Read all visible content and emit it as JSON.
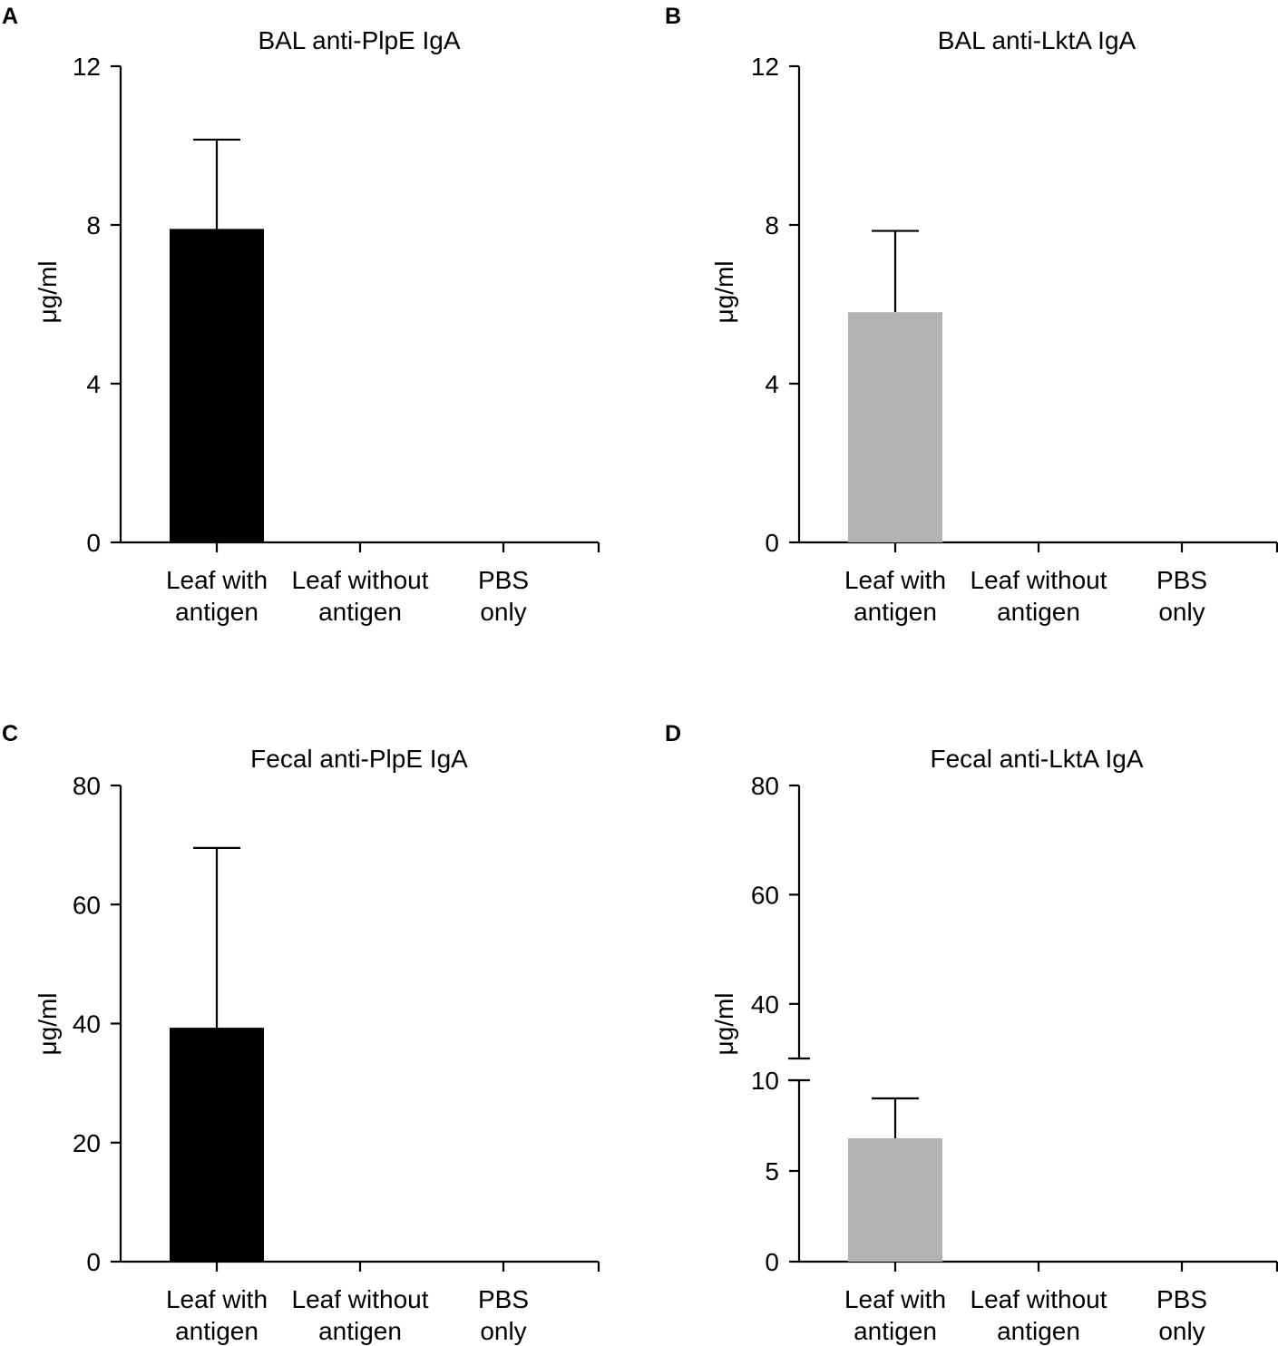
{
  "chart_data": [
    {
      "panel": "A",
      "type": "bar",
      "title": "BAL anti-PlpE IgA",
      "ylabel": "μg/ml",
      "categories": [
        [
          "Leaf with",
          "antigen"
        ],
        [
          "Leaf without",
          "antigen"
        ],
        [
          "PBS",
          "only"
        ]
      ],
      "values": [
        7.9,
        0,
        0
      ],
      "error": [
        2.25,
        0,
        0
      ],
      "ylim": [
        0,
        12
      ],
      "yticks": [
        0,
        4,
        8,
        12
      ],
      "bar_color": "#000000"
    },
    {
      "panel": "B",
      "type": "bar",
      "title": "BAL anti-LktA IgA",
      "ylabel": "μg/ml",
      "categories": [
        [
          "Leaf with",
          "antigen"
        ],
        [
          "Leaf without",
          "antigen"
        ],
        [
          "PBS",
          "only"
        ]
      ],
      "values": [
        5.8,
        0,
        0
      ],
      "error": [
        2.05,
        0,
        0
      ],
      "ylim": [
        0,
        12
      ],
      "yticks": [
        0,
        4,
        8,
        12
      ],
      "bar_color": "#b3b3b3"
    },
    {
      "panel": "C",
      "type": "bar",
      "title": "Fecal anti-PlpE IgA",
      "ylabel": "μg/ml",
      "categories": [
        [
          "Leaf with",
          "antigen"
        ],
        [
          "Leaf without",
          "antigen"
        ],
        [
          "PBS",
          "only"
        ]
      ],
      "values": [
        39.3,
        0,
        0
      ],
      "error": [
        30.2,
        0,
        0
      ],
      "ylim": [
        0,
        80
      ],
      "yticks": [
        0,
        20,
        40,
        60,
        80
      ],
      "bar_color": "#000000"
    },
    {
      "panel": "D",
      "type": "bar",
      "title": "Fecal anti-LktA IgA",
      "ylabel": "μg/ml",
      "categories": [
        [
          "Leaf with",
          "antigen"
        ],
        [
          "Leaf without",
          "antigen"
        ],
        [
          "PBS",
          "only"
        ]
      ],
      "values": [
        6.8,
        0,
        0
      ],
      "error": [
        2.2,
        0,
        0
      ],
      "broken_axis": {
        "lower": [
          0,
          10
        ],
        "upper": [
          30,
          80
        ]
      },
      "yticks": [
        0,
        5,
        10,
        40,
        60,
        80
      ],
      "bar_color": "#b3b3b3"
    }
  ]
}
